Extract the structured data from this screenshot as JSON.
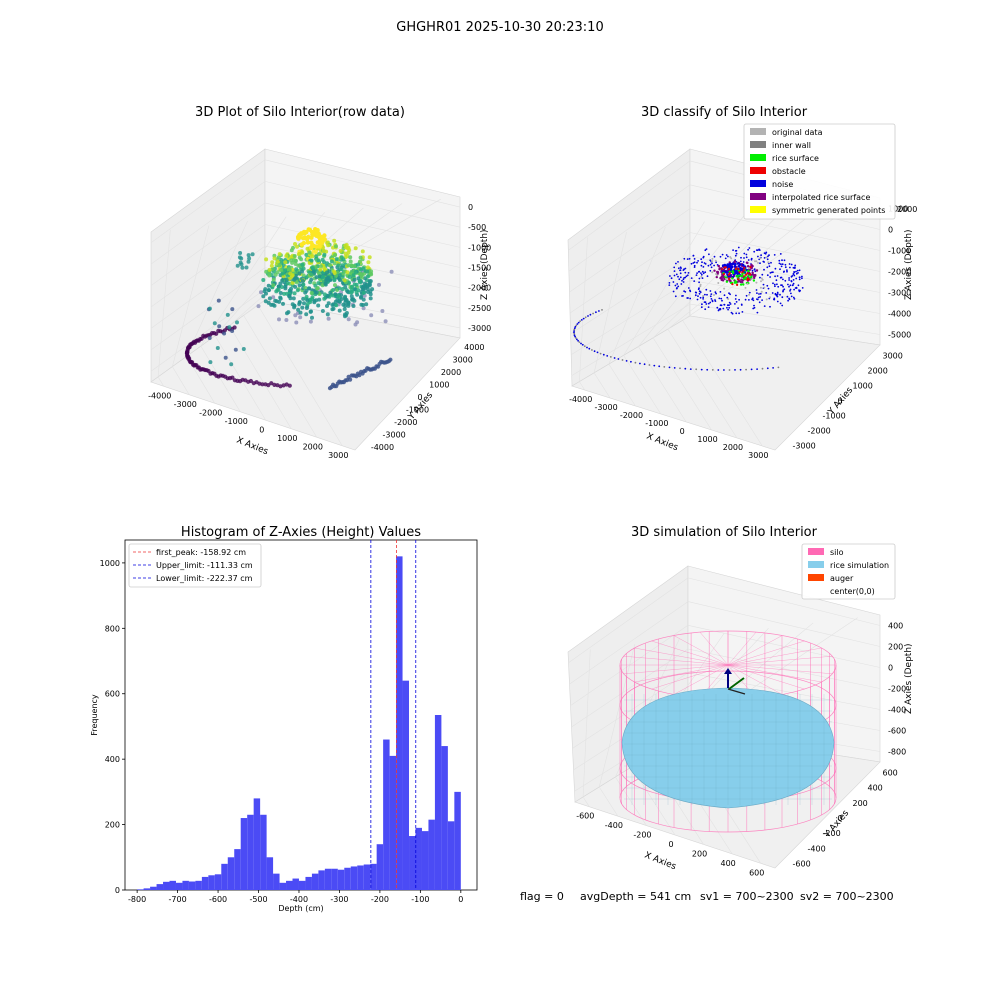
{
  "figure": {
    "suptitle": "GHGHR01 2025-10-30 20:23:10",
    "footer": {
      "flag": "flag = 0",
      "avg_depth": "avgDepth = 541 cm",
      "sv1": "sv1 = 700~2300",
      "sv2": "sv2 = 700~2300"
    }
  },
  "chart_data": [
    {
      "id": "raw",
      "type": "scatter3d",
      "title": "3D Plot of Silo Interior(row data)",
      "xlabel": "X Axies",
      "ylabel": "Y Axies",
      "zlabel": "Z Axies (Depth)",
      "xticks": [
        "-4000",
        "-3000",
        "-2000",
        "-1000",
        "0",
        "1000",
        "2000",
        "3000"
      ],
      "yticks": [
        "-4000",
        "-3000",
        "-2000",
        "-1000",
        "0",
        "1000",
        "2000",
        "3000",
        "4000"
      ],
      "zticks": [
        "0",
        "-500",
        "-1000",
        "-1500",
        "-2000",
        "-2500",
        "-3000"
      ],
      "xlim": [
        -4300,
        3600
      ],
      "ylim": [
        -4000,
        4200
      ],
      "zlim": [
        -3600,
        0
      ],
      "colormap": [
        "#440154",
        "#3b528b",
        "#21918c",
        "#27ad81",
        "#5ec962",
        "#c5e01f",
        "#fde725"
      ]
    },
    {
      "id": "classify",
      "type": "scatter3d",
      "title": "3D classify of Silo Interior",
      "xlabel": "X Axies",
      "ylabel": "Y Axies",
      "zlabel": "Z Axies (Depth)",
      "xticks": [
        "-4000",
        "-3000",
        "-2000",
        "-1000",
        "0",
        "1000",
        "2000",
        "3000"
      ],
      "yticks": [
        "-3000",
        "-2000",
        "-1000",
        "0",
        "1000",
        "2000",
        "3000"
      ],
      "zticks": [
        "1000",
        "0",
        "-1000",
        "-2000",
        "-3000",
        "-4000",
        "-5000"
      ],
      "zticks_hidden_top": "2000",
      "legend": [
        {
          "label": "original data",
          "color": "#b3b3b3"
        },
        {
          "label": "inner wall",
          "color": "#808080"
        },
        {
          "label": "rice surface",
          "color": "#00ee00"
        },
        {
          "label": "obstacle",
          "color": "#ee0000"
        },
        {
          "label": "noise",
          "color": "#0000dd"
        },
        {
          "label": "interpolated rice surface",
          "color": "#800080"
        },
        {
          "label": "symmetric generated points",
          "color": "#ffff00"
        }
      ]
    },
    {
      "id": "hist",
      "type": "bar",
      "title": "Histogram of Z-Axies (Height) Values",
      "xlabel": "Depth (cm)",
      "ylabel": "Frequency",
      "xlim": [
        -830,
        40
      ],
      "ylim": [
        0,
        1070
      ],
      "xticks": [
        -800,
        -700,
        -600,
        -500,
        -400,
        -300,
        -200,
        -100,
        0
      ],
      "yticks": [
        0,
        200,
        400,
        600,
        800,
        1000
      ],
      "bin_start": -800,
      "bin_width": 16,
      "bar_color": "#4b4bf5",
      "values": [
        2,
        5,
        10,
        18,
        25,
        28,
        22,
        28,
        26,
        28,
        40,
        45,
        48,
        80,
        100,
        125,
        220,
        230,
        280,
        230,
        100,
        50,
        22,
        28,
        35,
        28,
        40,
        50,
        60,
        65,
        65,
        62,
        68,
        72,
        75,
        78,
        80,
        140,
        460,
        410,
        1020,
        640,
        165,
        190,
        180,
        215,
        535,
        440,
        210,
        300
      ],
      "lines": [
        {
          "label": "first_peak: -158.92 cm",
          "value": -158.92,
          "color": "#e33"
        },
        {
          "label": "Upper_limit: -111.33 cm",
          "value": -111.33,
          "color": "#00d"
        },
        {
          "label": "Lower_limit: -222.37 cm",
          "value": -222.37,
          "color": "#00d"
        }
      ],
      "legend_placement": "upper-left"
    },
    {
      "id": "sim",
      "type": "surface3d",
      "title": "3D simulation of Silo Interior",
      "xlabel": "X Axies",
      "ylabel": "Y Axies",
      "zlabel": "Z Axies (Depth)",
      "xticks": [
        "-600",
        "-400",
        "-200",
        "0",
        "200",
        "400",
        "600"
      ],
      "yticks": [
        "-600",
        "-400",
        "-200",
        "0",
        "200",
        "400",
        "600"
      ],
      "zticks": [
        "400",
        "200",
        "0",
        "-200",
        "-400",
        "-600",
        "-800"
      ],
      "legend": [
        {
          "label": "silo",
          "color": "#ff69b4"
        },
        {
          "label": "rice simulation",
          "color": "#87ceeb"
        },
        {
          "label": "auger",
          "color": "#ff4500"
        },
        {
          "label": "center(0,0)",
          "color": "#ffffff"
        }
      ]
    }
  ]
}
